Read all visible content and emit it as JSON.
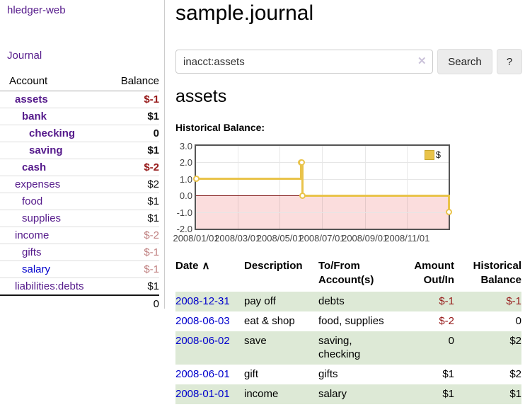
{
  "colors": {
    "purple": "#551a8b",
    "blue": "#0000cc",
    "neg_strong": "#961919",
    "neg_muted": "#c08080",
    "row_green": "#dde9d6",
    "gold": "#e9c34a",
    "legend_border": "#c7a62e",
    "pink": "#fbdddd",
    "zero_line": "#7d0f0f",
    "axis_text": "#444444"
  },
  "sidebar": {
    "brand": "hledger-web",
    "nav": {
      "journal": "Journal"
    },
    "accounts": {
      "header": {
        "account": "Account",
        "balance": "Balance"
      },
      "rows": [
        {
          "name": "assets",
          "depth": 0,
          "bold": true,
          "balance": "$-1",
          "neg": "strong",
          "link": "visited"
        },
        {
          "name": "bank",
          "depth": 1,
          "bold": true,
          "balance": "$1",
          "neg": "none",
          "link": "visited"
        },
        {
          "name": "checking",
          "depth": 2,
          "bold": true,
          "balance": "0",
          "neg": "none",
          "link": "visited"
        },
        {
          "name": "saving",
          "depth": 2,
          "bold": true,
          "balance": "$1",
          "neg": "none",
          "link": "visited"
        },
        {
          "name": "cash",
          "depth": 1,
          "bold": true,
          "balance": "$-2",
          "neg": "strong",
          "link": "visited"
        },
        {
          "name": "expenses",
          "depth": 0,
          "bold": false,
          "balance": "$2",
          "neg": "none",
          "link": "visited"
        },
        {
          "name": "food",
          "depth": 1,
          "bold": false,
          "balance": "$1",
          "neg": "none",
          "link": "visited"
        },
        {
          "name": "supplies",
          "depth": 1,
          "bold": false,
          "balance": "$1",
          "neg": "none",
          "link": "visited"
        },
        {
          "name": "income",
          "depth": 0,
          "bold": false,
          "balance": "$-2",
          "neg": "muted",
          "link": "visited"
        },
        {
          "name": "gifts",
          "depth": 1,
          "bold": false,
          "balance": "$-1",
          "neg": "muted",
          "link": "visited"
        },
        {
          "name": "salary",
          "depth": 1,
          "bold": false,
          "balance": "$-1",
          "neg": "muted",
          "link": "unvisited"
        },
        {
          "name": "liabilities:debts",
          "depth": 0,
          "bold": false,
          "balance": "$1",
          "neg": "none",
          "link": "visited"
        }
      ],
      "total": "0"
    }
  },
  "main": {
    "title": "sample.journal",
    "search": {
      "value": "inacct:assets",
      "clear_icon": "✕",
      "button_label": "Search",
      "help_label": "?"
    },
    "account_heading": "assets",
    "chart_title": "Historical Balance:"
  },
  "chart_data": {
    "type": "line",
    "subtype": "step-with-markers",
    "title": "Historical Balance",
    "legend": "$",
    "legend_position": "top-right",
    "grid": true,
    "x_range": [
      "2008-01-01",
      "2008-12-31"
    ],
    "y_range": [
      -2,
      3
    ],
    "x_ticks": [
      "2008/01/01",
      "2008/03/01",
      "2008/05/01",
      "2008/07/01",
      "2008/09/01",
      "2008/11/01"
    ],
    "y_ticks": [
      3.0,
      2.0,
      1.0,
      0.0,
      -1.0,
      -2.0
    ],
    "series": [
      {
        "name": "$",
        "points": [
          [
            "2008-01-01",
            1
          ],
          [
            "2008-06-01",
            2
          ],
          [
            "2008-06-02",
            2
          ],
          [
            "2008-06-03",
            0
          ],
          [
            "2008-12-31",
            -1
          ]
        ]
      }
    ],
    "negative_region_shaded": true
  },
  "table": {
    "headers": {
      "date": "Date",
      "sort_icon": "∧",
      "description": "Description",
      "tofrom": [
        "To/From",
        "Account(s)"
      ],
      "amount": [
        "Amount",
        "Out/In"
      ],
      "balance": [
        "Historical",
        "Balance"
      ]
    },
    "rows": [
      {
        "date": "2008-12-31",
        "description": "pay off",
        "accounts": "debts",
        "amount": "$-1",
        "amount_neg": true,
        "balance": "$-1",
        "balance_neg": true,
        "shaded": true
      },
      {
        "date": "2008-06-03",
        "description": "eat & shop",
        "accounts": "food, supplies",
        "amount": "$-2",
        "amount_neg": true,
        "balance": "0",
        "balance_neg": false,
        "shaded": false
      },
      {
        "date": "2008-06-02",
        "description": "save",
        "accounts": "saving, checking",
        "amount": "0",
        "amount_neg": false,
        "balance": "$2",
        "balance_neg": false,
        "shaded": true
      },
      {
        "date": "2008-06-01",
        "description": "gift",
        "accounts": "gifts",
        "amount": "$1",
        "amount_neg": false,
        "balance": "$2",
        "balance_neg": false,
        "shaded": false
      },
      {
        "date": "2008-01-01",
        "description": "income",
        "accounts": "salary",
        "amount": "$1",
        "amount_neg": false,
        "balance": "$1",
        "balance_neg": false,
        "shaded": true
      }
    ]
  }
}
